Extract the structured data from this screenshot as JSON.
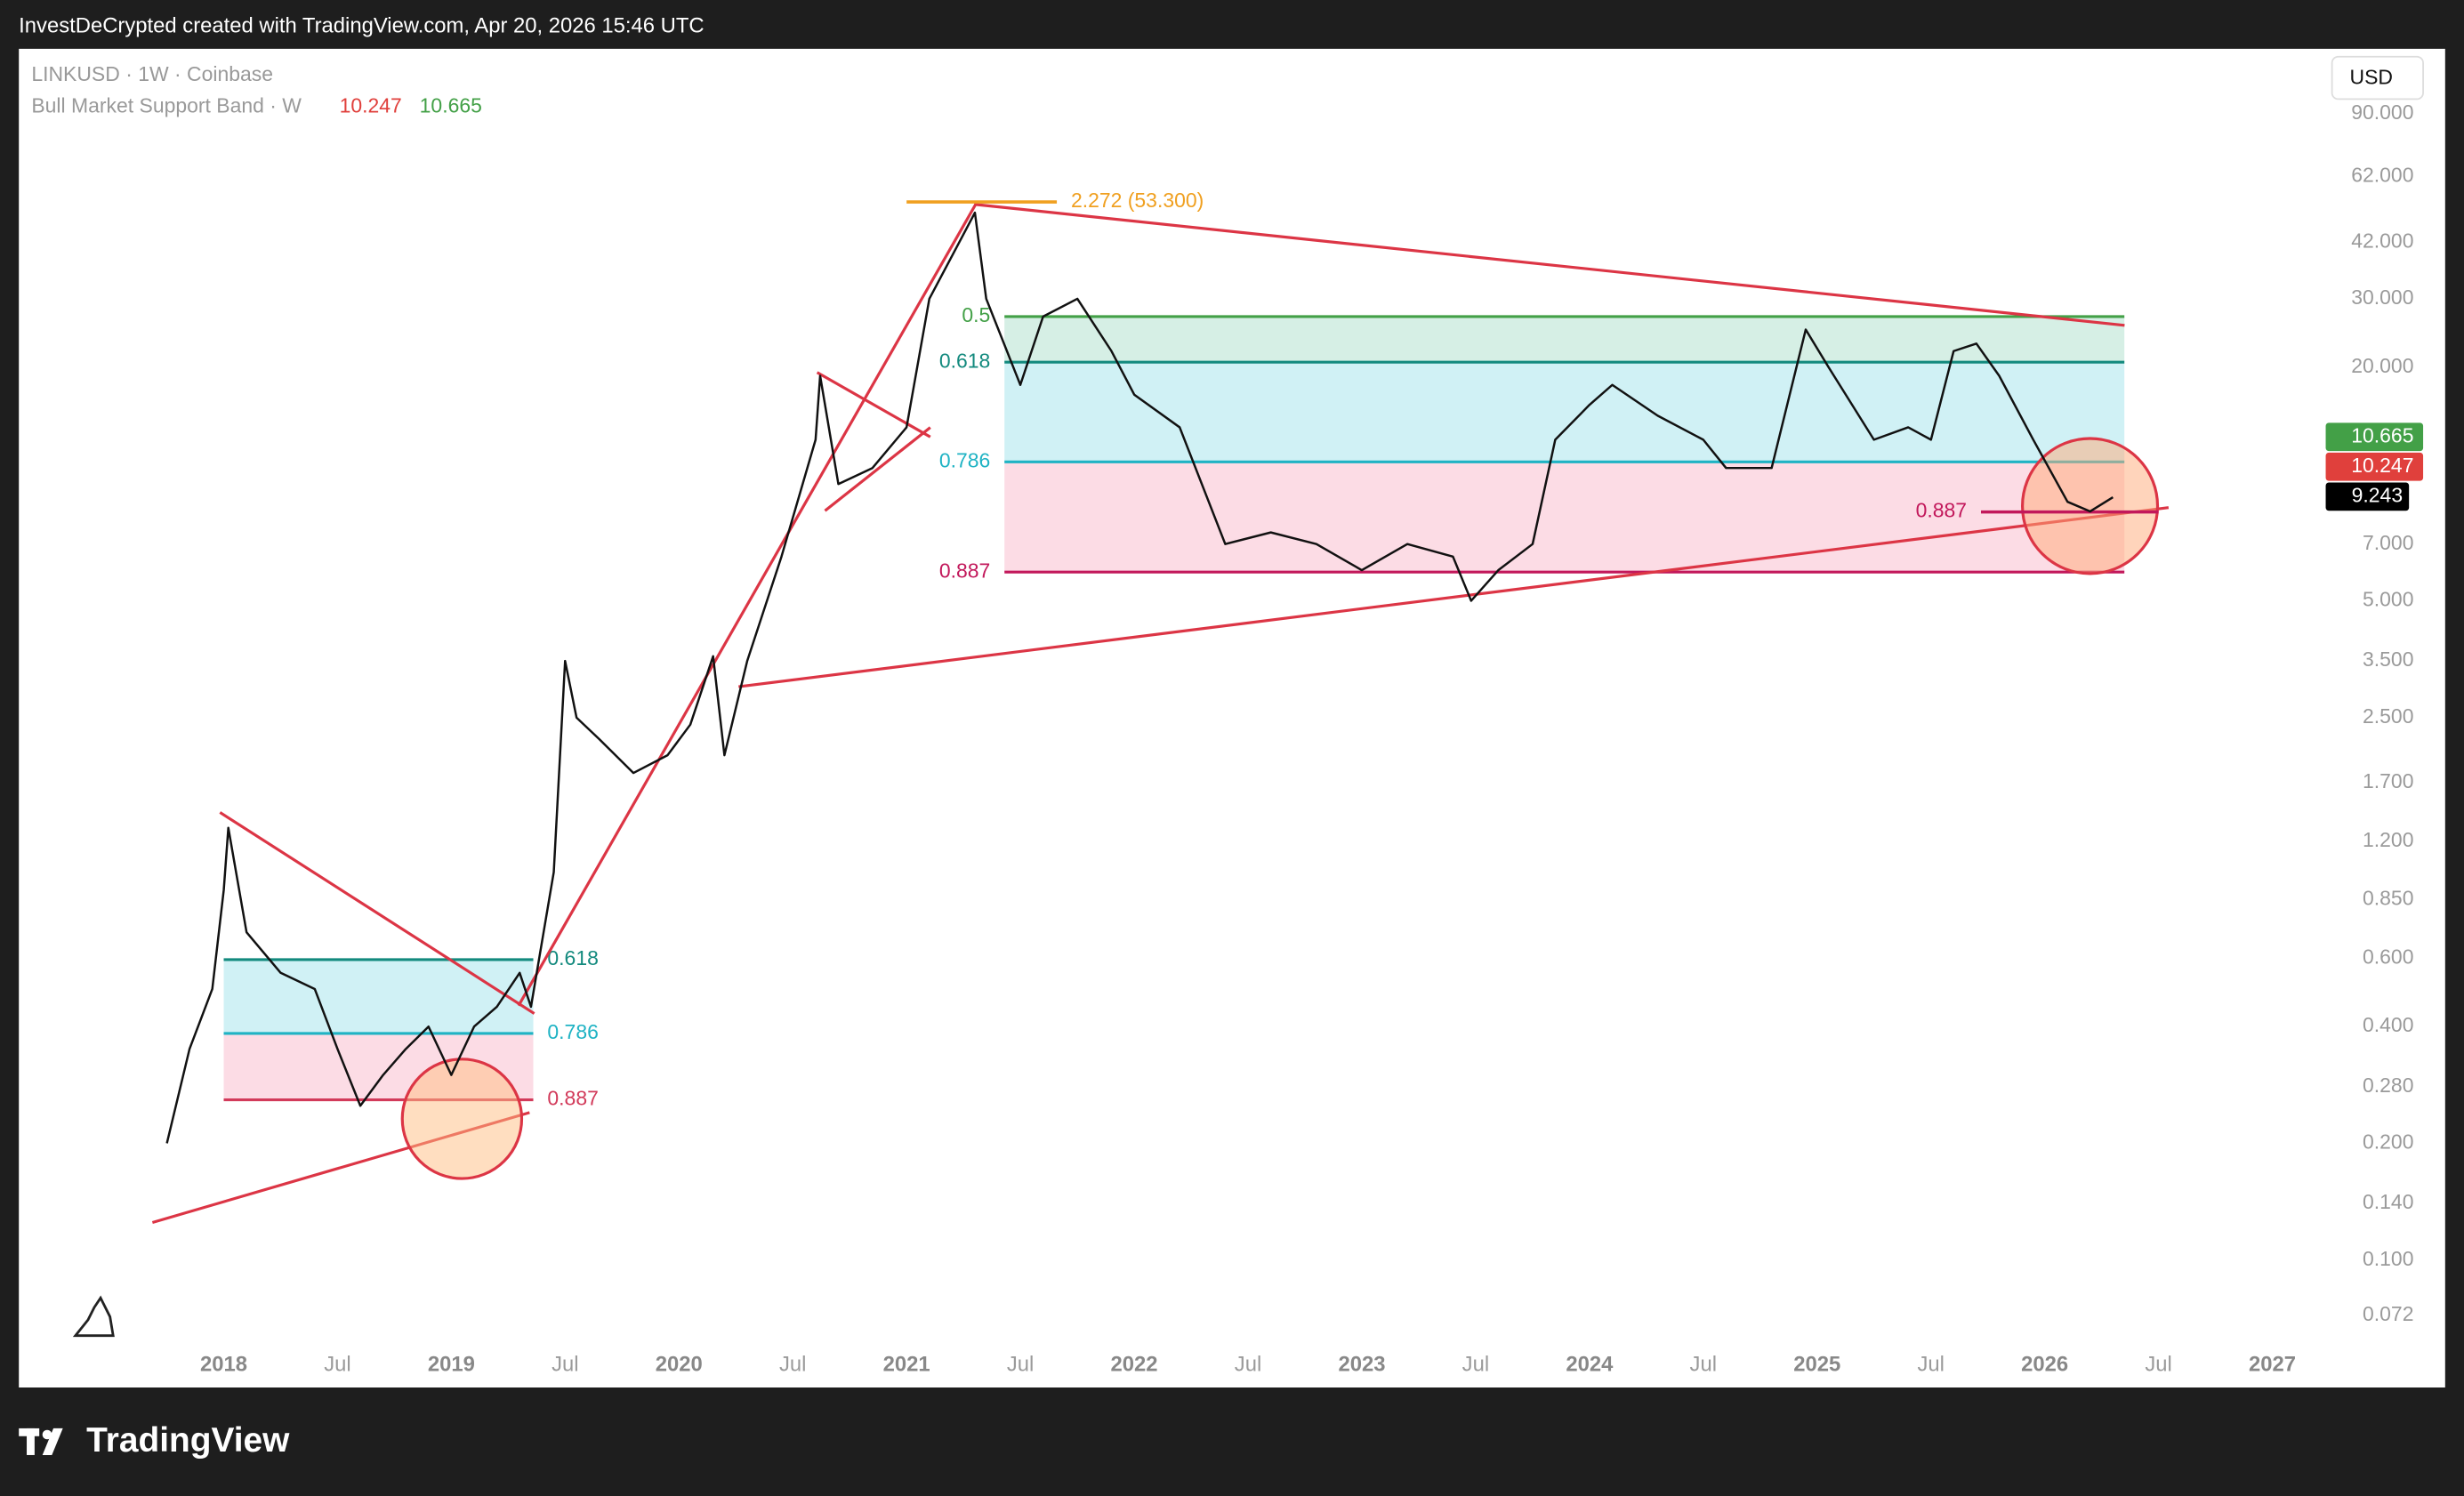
{
  "header": "InvestDeCrypted created with TradingView.com, Apr 20, 2026 15:46 UTC",
  "brand": "TradingView",
  "chart_data": {
    "type": "line",
    "symbol": "LINKUSD · 1W · Coinbase",
    "indicator": "Bull Market Support Band · W",
    "indicator_values": [
      10.247,
      10.665
    ],
    "indicator_colors": [
      "#e0403c",
      "#43a047"
    ],
    "last_price": 9.243,
    "currency": "USD",
    "log_scale": true,
    "grid": false,
    "xlim": [
      2017.1,
      2027.2
    ],
    "xticks": [
      2018,
      {
        "value": 2018.5,
        "label": "Jul"
      },
      2019,
      {
        "value": 2019.5,
        "label": "Jul"
      },
      2020,
      {
        "value": 2020.5,
        "label": "Jul"
      },
      2021,
      {
        "value": 2021.5,
        "label": "Jul"
      },
      2022,
      {
        "value": 2022.5,
        "label": "Jul"
      },
      2023,
      {
        "value": 2023.5,
        "label": "Jul"
      },
      2024,
      {
        "value": 2024.5,
        "label": "Jul"
      },
      2025,
      {
        "value": 2025.5,
        "label": "Jul"
      },
      2026,
      {
        "value": 2026.5,
        "label": "Jul"
      },
      2027
    ],
    "ylim": [
      0.047,
      131
    ],
    "yticks": [
      {
        "value": 90,
        "label": "90.000"
      },
      {
        "value": 62,
        "label": "62.000"
      },
      {
        "value": 42,
        "label": "42.000"
      },
      {
        "value": 30,
        "label": "30.000"
      },
      {
        "value": 20,
        "label": "20.000"
      },
      {
        "value": 7,
        "label": "7.000"
      },
      {
        "value": 5,
        "label": "5.000"
      },
      {
        "value": 3.5,
        "label": "3.500"
      },
      {
        "value": 2.5,
        "label": "2.500"
      },
      {
        "value": 1.7,
        "label": "1.700"
      },
      {
        "value": 1.2,
        "label": "1.200"
      },
      {
        "value": 0.85,
        "label": "0.850"
      },
      {
        "value": 0.6,
        "label": "0.600"
      },
      {
        "value": 0.4,
        "label": "0.400"
      },
      {
        "value": 0.28,
        "label": "0.280"
      },
      {
        "value": 0.2,
        "label": "0.200"
      },
      {
        "value": 0.14,
        "label": "0.140"
      },
      {
        "value": 0.1,
        "label": "0.100"
      },
      0.072
    ],
    "series": [
      {
        "name": "LINKUSD",
        "color": "#111111",
        "x": [
          2017.75,
          2017.85,
          2017.95,
          2018.0,
          2018.02,
          2018.1,
          2018.25,
          2018.4,
          2018.5,
          2018.6,
          2018.7,
          2018.8,
          2018.9,
          2019.0,
          2019.1,
          2019.2,
          2019.3,
          2019.35,
          2019.45,
          2019.5,
          2019.55,
          2019.65,
          2019.8,
          2019.95,
          2020.05,
          2020.15,
          2020.2,
          2020.3,
          2020.45,
          2020.6,
          2020.62,
          2020.7,
          2020.85,
          2021.0,
          2021.1,
          2021.3,
          2021.35,
          2021.5,
          2021.6,
          2021.75,
          2021.9,
          2022.0,
          2022.2,
          2022.4,
          2022.6,
          2022.8,
          2023.0,
          2023.2,
          2023.4,
          2023.48,
          2023.6,
          2023.75,
          2023.85,
          2024.0,
          2024.1,
          2024.3,
          2024.5,
          2024.6,
          2024.8,
          2024.95,
          2025.05,
          2025.25,
          2025.4,
          2025.5,
          2025.6,
          2025.7,
          2025.8,
          2025.95,
          2026.1,
          2026.2,
          2026.3
        ],
        "values": [
          0.2,
          0.35,
          0.5,
          0.9,
          1.3,
          0.7,
          0.55,
          0.5,
          0.35,
          0.25,
          0.3,
          0.35,
          0.4,
          0.3,
          0.4,
          0.45,
          0.55,
          0.45,
          1.0,
          3.5,
          2.5,
          2.2,
          1.8,
          2.0,
          2.4,
          3.6,
          2.0,
          3.5,
          6.5,
          13,
          19,
          10,
          11,
          14,
          30,
          50,
          30,
          18,
          27,
          30,
          22,
          17,
          14,
          7,
          7.5,
          7,
          6,
          7,
          6.5,
          5,
          6,
          7,
          13,
          16,
          18,
          15,
          13,
          11,
          11,
          25,
          20,
          13,
          14,
          13,
          22,
          23,
          19,
          13,
          9,
          8.5,
          9.243
        ]
      }
    ],
    "fib_zones": [
      {
        "x": [
          2018.0,
          2019.36
        ],
        "label_side": "right",
        "levels": [
          {
            "label": "0.618",
            "value": 0.595,
            "color": "#138a7e",
            "fill": "#c8eff3"
          },
          {
            "label": "0.786",
            "value": 0.384,
            "color": "#1fb3c4",
            "fill": "#fbd6e0"
          },
          {
            "label": "0.887",
            "value": 0.259,
            "color": "#d23a5a"
          }
        ]
      },
      {
        "x": [
          2021.43,
          2026.35
        ],
        "label_side": "left",
        "levels": [
          {
            "label": "0.5",
            "value": 27,
            "color": "#43a047",
            "fill": "#cfece0"
          },
          {
            "label": "0.618",
            "value": 20.6,
            "color": "#138a7e",
            "fill": "#c8eff3"
          },
          {
            "label": "0.786",
            "value": 11.4,
            "color": "#1fb3c4",
            "fill": "#fbd6e0"
          },
          {
            "label": "0.887",
            "value": 5.93,
            "color": "#c2185b"
          }
        ]
      }
    ],
    "level_lines": [
      {
        "label": "2.272 (53.300)",
        "value": 53.3,
        "x": [
          2021.0,
          2021.66
        ],
        "color": "#f0a020"
      },
      {
        "label": "0.887",
        "value": 8.47,
        "x": [
          2025.72,
          2026.5
        ],
        "color": "#c2185b"
      }
    ]
  }
}
